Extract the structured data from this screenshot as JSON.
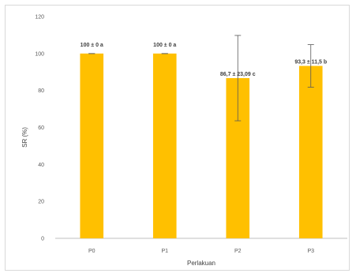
{
  "chart_data": {
    "type": "bar",
    "title": "",
    "xlabel": "Perlakuan",
    "ylabel": "SR (%)",
    "categories": [
      "P0",
      "P1",
      "P2",
      "P3"
    ],
    "values": [
      100,
      100,
      86.7,
      93.3
    ],
    "errors": [
      0,
      0,
      23.09,
      11.5
    ],
    "data_labels": [
      "100 ± 0 a",
      "100 ± 0 a",
      "86,7 ± 23,09 c",
      "93,3 ± 11,5 b"
    ],
    "ylim": [
      0,
      120
    ],
    "yticks": [
      0,
      20,
      40,
      60,
      80,
      100,
      120
    ],
    "grid": false,
    "legend": "none",
    "bar_color": "#FFC000",
    "axis_color": "#bfbfbf",
    "error_bar_color": "#595959"
  }
}
